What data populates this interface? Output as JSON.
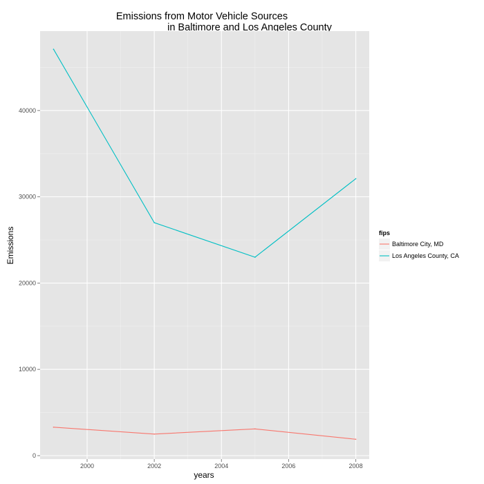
{
  "chart_data": {
    "type": "line",
    "title_lines": [
      "Emissions from Motor Vehicle Sources",
      "in Baltimore and Los Angeles County"
    ],
    "xlabel": "years",
    "ylabel": "Emissions",
    "x": [
      1999,
      2002,
      2005,
      2008
    ],
    "xlim": [
      1998.6,
      2008.4
    ],
    "ylim": [
      -400,
      49200
    ],
    "x_ticks": [
      2000,
      2002,
      2004,
      2006,
      2008
    ],
    "y_ticks": [
      0,
      10000,
      20000,
      30000,
      40000
    ],
    "x_tick_labels": [
      "2000",
      "2002",
      "2004",
      "2006",
      "2008"
    ],
    "y_tick_labels": [
      "0",
      "10000",
      "20000",
      "30000",
      "40000"
    ],
    "grid": true,
    "legend": {
      "title": "fips",
      "position": "right"
    },
    "series": [
      {
        "name": "Baltimore City, MD",
        "color": "#F8766D",
        "values": [
          3300,
          2500,
          3100,
          1900
        ]
      },
      {
        "name": "Los Angeles County, CA",
        "color": "#00BFC4",
        "values": [
          47100,
          27000,
          23000,
          32100
        ]
      }
    ],
    "panel_background": "#E5E5E5",
    "grid_color": "#FFFFFF"
  }
}
